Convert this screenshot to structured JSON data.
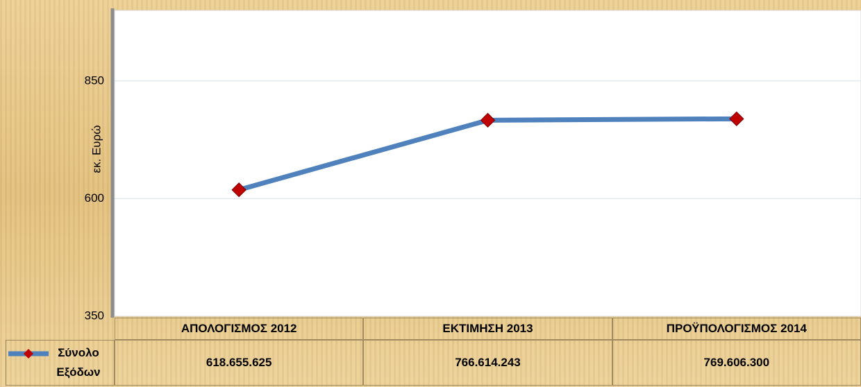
{
  "chart_data": {
    "type": "line",
    "y_axis_label": "εκ. Ευρώ",
    "categories": [
      "ΑΠΟΛΟΓΙΣΜΟΣ 2012",
      "ΕΚΤΙΜΗΣΗ 2013",
      "ΠΡΟΫΠΟΛΟΓΙΣΜΟΣ 2014"
    ],
    "series": [
      {
        "name": "Σύνολο Εξόδων",
        "color": "#4f81bd",
        "marker_color": "#c00000",
        "values": [
          618.655625,
          766.614243,
          769.6063
        ],
        "value_labels": [
          "618.655.625",
          "766.614.243",
          "769.606.300"
        ]
      }
    ],
    "ylim": [
      350,
      1000
    ],
    "yticks": [
      350,
      600,
      850
    ],
    "grid": true
  }
}
